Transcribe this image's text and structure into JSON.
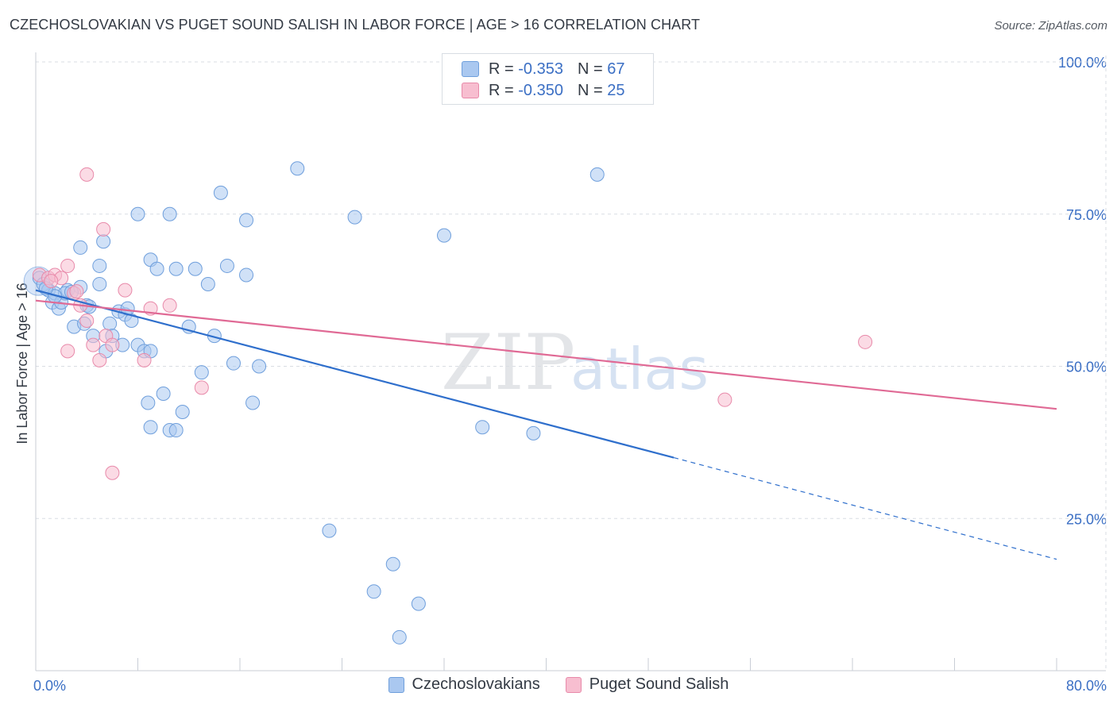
{
  "header": {
    "title": "CZECHOSLOVAKIAN VS PUGET SOUND SALISH IN LABOR FORCE | AGE > 16 CORRELATION CHART",
    "source": "Source: ZipAtlas.com"
  },
  "legend": {
    "rows": [
      {
        "r_label": "R =",
        "r_value": "-0.353",
        "n_label": "N =",
        "n_value": "67"
      },
      {
        "r_label": "R =",
        "r_value": "-0.350",
        "n_label": "N =",
        "n_value": "25"
      }
    ]
  },
  "bottom_legend": {
    "items": [
      {
        "label": "Czechoslovakians"
      },
      {
        "label": "Puget Sound Salish"
      }
    ]
  },
  "colors": {
    "blue_fill": "#aac8f0",
    "blue_stroke": "#6f9fdc",
    "blue_line": "#2f6fcc",
    "pink_fill": "#f7bed0",
    "pink_stroke": "#e88aaa",
    "pink_line": "#e06a95",
    "axis_text": "#3b6fc4",
    "grid": "#d9dde3"
  },
  "watermark": {
    "zip": "ZIP",
    "atlas": "atlas"
  },
  "chart_data": {
    "type": "scatter",
    "title": "CZECHOSLOVAKIAN VS PUGET SOUND SALISH IN LABOR FORCE | AGE > 16 CORRELATION CHART",
    "xlabel": "",
    "ylabel": "In Labor Force | Age > 16",
    "xlim": [
      0,
      80
    ],
    "ylim": [
      0,
      100
    ],
    "x_tick_labels": [
      "0.0%",
      "80.0%"
    ],
    "y_ticks": [
      25,
      50,
      75,
      100
    ],
    "y_tick_labels": [
      "25.0%",
      "50.0%",
      "75.0%",
      "100.0%"
    ],
    "grid": true,
    "series": [
      {
        "name": "Czechoslovakians",
        "r": -0.353,
        "n": 67,
        "trend": {
          "x0": 0,
          "y0": 62.5,
          "x1": 50,
          "y1": 35.0,
          "dashed_to_x": 80,
          "dashed_to_y": 18.3
        },
        "points": [
          [
            0.3,
            64.5
          ],
          [
            0.6,
            63.5
          ],
          [
            1.0,
            62.5
          ],
          [
            1.3,
            60.5
          ],
          [
            1.5,
            62.0
          ],
          [
            1.8,
            59.5
          ],
          [
            2.0,
            60.5
          ],
          [
            2.5,
            62.5
          ],
          [
            3.0,
            56.5
          ],
          [
            3.5,
            63.0
          ],
          [
            4.0,
            60.0
          ],
          [
            4.5,
            55.0
          ],
          [
            5.0,
            63.5
          ],
          [
            5.5,
            52.5
          ],
          [
            5.8,
            57.0
          ],
          [
            6.5,
            59.0
          ],
          [
            7.0,
            58.5
          ],
          [
            7.5,
            57.5
          ],
          [
            8.0,
            53.5
          ],
          [
            8.5,
            52.5
          ],
          [
            9.0,
            52.5
          ],
          [
            2.3,
            62.0
          ],
          [
            3.8,
            57.0
          ],
          [
            6.0,
            55.0
          ],
          [
            6.8,
            53.5
          ],
          [
            7.2,
            59.5
          ],
          [
            8.8,
            44.0
          ],
          [
            10.0,
            45.5
          ],
          [
            9.0,
            40.0
          ],
          [
            10.5,
            39.5
          ],
          [
            11.0,
            39.5
          ],
          [
            11.5,
            42.5
          ],
          [
            12.0,
            56.5
          ],
          [
            13.0,
            49.0
          ],
          [
            13.5,
            63.5
          ],
          [
            14.0,
            55.0
          ],
          [
            15.0,
            66.5
          ],
          [
            15.5,
            50.5
          ],
          [
            16.5,
            65.0
          ],
          [
            17.0,
            44.0
          ],
          [
            17.5,
            50.0
          ],
          [
            3.5,
            69.5
          ],
          [
            5.0,
            66.5
          ],
          [
            5.3,
            70.5
          ],
          [
            8.0,
            75.0
          ],
          [
            9.0,
            67.5
          ],
          [
            9.5,
            66.0
          ],
          [
            10.5,
            75.0
          ],
          [
            11.0,
            66.0
          ],
          [
            12.5,
            66.0
          ],
          [
            14.5,
            78.5
          ],
          [
            16.5,
            74.0
          ],
          [
            20.5,
            82.5
          ],
          [
            25.0,
            74.5
          ],
          [
            32.0,
            71.5
          ],
          [
            44.0,
            81.5
          ],
          [
            35.0,
            40.0
          ],
          [
            39.0,
            39.0
          ],
          [
            23.0,
            23.0
          ],
          [
            28.0,
            17.5
          ],
          [
            26.5,
            13.0
          ],
          [
            30.0,
            11.0
          ],
          [
            28.5,
            5.5
          ],
          [
            1.5,
            61.5
          ],
          [
            4.2,
            59.8
          ],
          [
            2.8,
            62.2
          ],
          [
            0.8,
            62.8
          ]
        ]
      },
      {
        "name": "Puget Sound Salish",
        "r": -0.35,
        "n": 25,
        "trend": {
          "x0": 0,
          "y0": 60.8,
          "x1": 80,
          "y1": 43.0
        },
        "points": [
          [
            0.3,
            65.0
          ],
          [
            1.0,
            64.5
          ],
          [
            1.5,
            65.0
          ],
          [
            2.0,
            64.5
          ],
          [
            2.5,
            66.5
          ],
          [
            3.0,
            62.0
          ],
          [
            3.5,
            60.0
          ],
          [
            4.0,
            57.5
          ],
          [
            4.5,
            53.5
          ],
          [
            5.0,
            51.0
          ],
          [
            5.5,
            55.0
          ],
          [
            6.0,
            53.5
          ],
          [
            7.0,
            62.5
          ],
          [
            8.5,
            51.0
          ],
          [
            9.0,
            59.5
          ],
          [
            10.5,
            60.0
          ],
          [
            13.0,
            46.5
          ],
          [
            4.0,
            81.5
          ],
          [
            5.3,
            72.5
          ],
          [
            6.0,
            32.5
          ],
          [
            2.5,
            52.5
          ],
          [
            3.2,
            62.3
          ],
          [
            65.0,
            54.0
          ],
          [
            54.0,
            44.5
          ],
          [
            1.2,
            64.0
          ]
        ]
      }
    ]
  }
}
